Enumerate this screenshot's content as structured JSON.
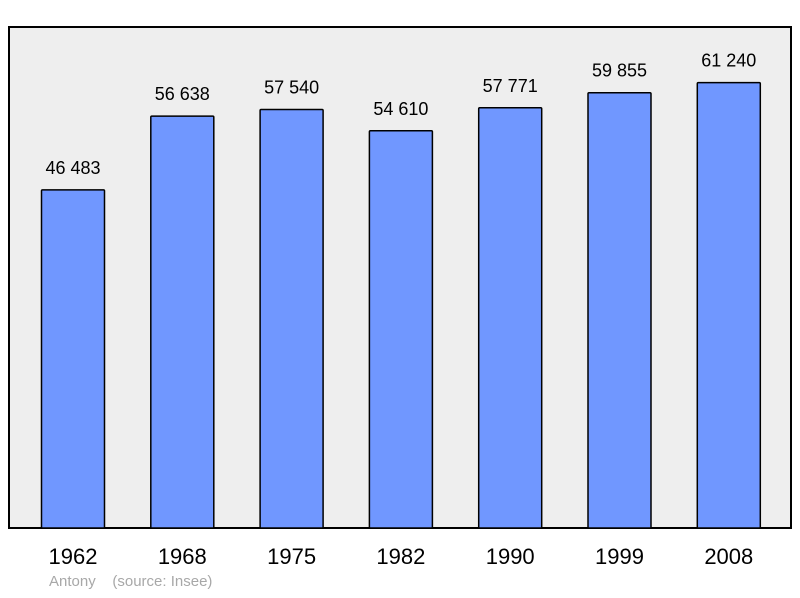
{
  "chart_data": {
    "type": "bar",
    "categories": [
      "1962",
      "1968",
      "1975",
      "1982",
      "1990",
      "1999",
      "2008"
    ],
    "values": [
      46483,
      56638,
      57540,
      54610,
      57771,
      59855,
      61240
    ],
    "value_labels": [
      "46 483",
      "56 638",
      "57 540",
      "54 610",
      "57 771",
      "59 855",
      "61 240"
    ],
    "ylim": [
      0,
      66000
    ],
    "grid": false,
    "bar_color": "#7097ff",
    "plot_background": "#eeeeee"
  },
  "caption": {
    "place": "Antony",
    "source": "(source: Insee)"
  }
}
